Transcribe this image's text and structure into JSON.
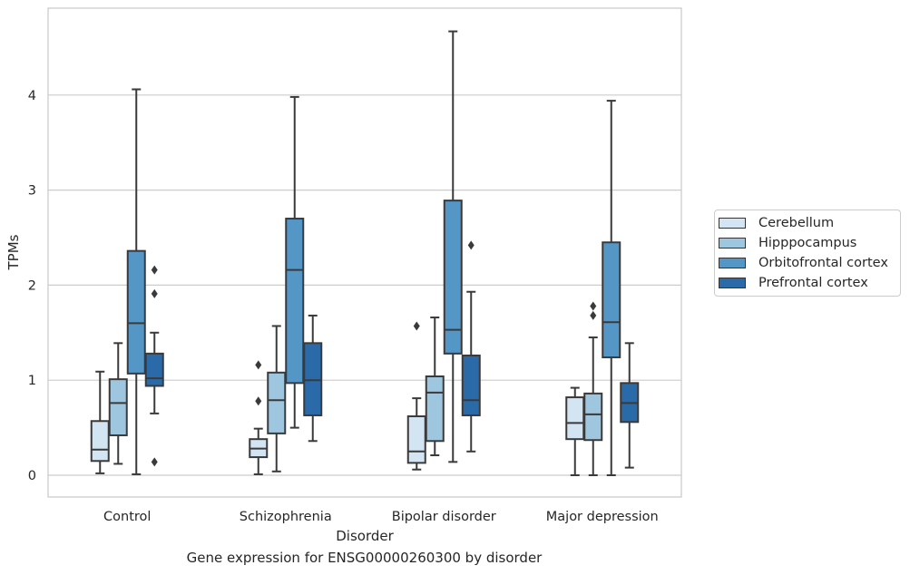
{
  "caption": "Gene expression for ENSG00000260300 by disorder",
  "chart_data": {
    "type": "box",
    "xlabel": "Disorder",
    "ylabel": "TPMs",
    "ylim": [
      -0.22,
      4.95
    ],
    "yticks": [
      0,
      1,
      2,
      3,
      4
    ],
    "grid": "horizontal",
    "legend_position": "right",
    "categories": [
      "Control",
      "Schizophrenia",
      "Bipolar disorder",
      "Major depression"
    ],
    "series": [
      {
        "name": "Cerebellum",
        "color": "#d3e4f3",
        "boxes": [
          {
            "whislo": 0.02,
            "q1": 0.15,
            "med": 0.27,
            "q3": 0.57,
            "whishi": 1.09,
            "fliers": []
          },
          {
            "whislo": 0.01,
            "q1": 0.19,
            "med": 0.28,
            "q3": 0.38,
            "whishi": 0.49,
            "fliers": [
              0.78,
              1.16
            ]
          },
          {
            "whislo": 0.06,
            "q1": 0.13,
            "med": 0.25,
            "q3": 0.62,
            "whishi": 0.81,
            "fliers": [
              1.57
            ]
          },
          {
            "whislo": 0.0,
            "q1": 0.38,
            "med": 0.55,
            "q3": 0.82,
            "whishi": 0.92,
            "fliers": []
          }
        ]
      },
      {
        "name": "Hipppocampus",
        "color": "#9fc6df",
        "boxes": [
          {
            "whislo": 0.12,
            "q1": 0.42,
            "med": 0.76,
            "q3": 1.01,
            "whishi": 1.39,
            "fliers": []
          },
          {
            "whislo": 0.04,
            "q1": 0.44,
            "med": 0.79,
            "q3": 1.08,
            "whishi": 1.57,
            "fliers": []
          },
          {
            "whislo": 0.21,
            "q1": 0.36,
            "med": 0.87,
            "q3": 1.04,
            "whishi": 1.66,
            "fliers": []
          },
          {
            "whislo": 0.0,
            "q1": 0.37,
            "med": 0.64,
            "q3": 0.86,
            "whishi": 1.45,
            "fliers": [
              1.68,
              1.78
            ]
          }
        ]
      },
      {
        "name": "Orbitofrontal cortex",
        "color": "#5496c6",
        "boxes": [
          {
            "whislo": 0.01,
            "q1": 1.07,
            "med": 1.6,
            "q3": 2.36,
            "whishi": 4.06,
            "fliers": []
          },
          {
            "whislo": 0.5,
            "q1": 0.97,
            "med": 2.16,
            "q3": 2.7,
            "whishi": 3.98,
            "fliers": []
          },
          {
            "whislo": 0.14,
            "q1": 1.28,
            "med": 1.53,
            "q3": 2.89,
            "whishi": 4.67,
            "fliers": []
          },
          {
            "whislo": 0.0,
            "q1": 1.24,
            "med": 1.61,
            "q3": 2.45,
            "whishi": 3.94,
            "fliers": []
          }
        ]
      },
      {
        "name": "Prefrontal cortex",
        "color": "#2b6aa9",
        "boxes": [
          {
            "whislo": 0.65,
            "q1": 0.94,
            "med": 1.02,
            "q3": 1.28,
            "whishi": 1.5,
            "fliers": [
              0.14,
              1.91,
              2.16
            ]
          },
          {
            "whislo": 0.36,
            "q1": 0.63,
            "med": 1.0,
            "q3": 1.39,
            "whishi": 1.68,
            "fliers": []
          },
          {
            "whislo": 0.25,
            "q1": 0.63,
            "med": 0.79,
            "q3": 1.26,
            "whishi": 1.93,
            "fliers": [
              2.42
            ]
          },
          {
            "whislo": 0.08,
            "q1": 0.56,
            "med": 0.76,
            "q3": 0.97,
            "whishi": 1.39,
            "fliers": []
          }
        ]
      }
    ]
  }
}
